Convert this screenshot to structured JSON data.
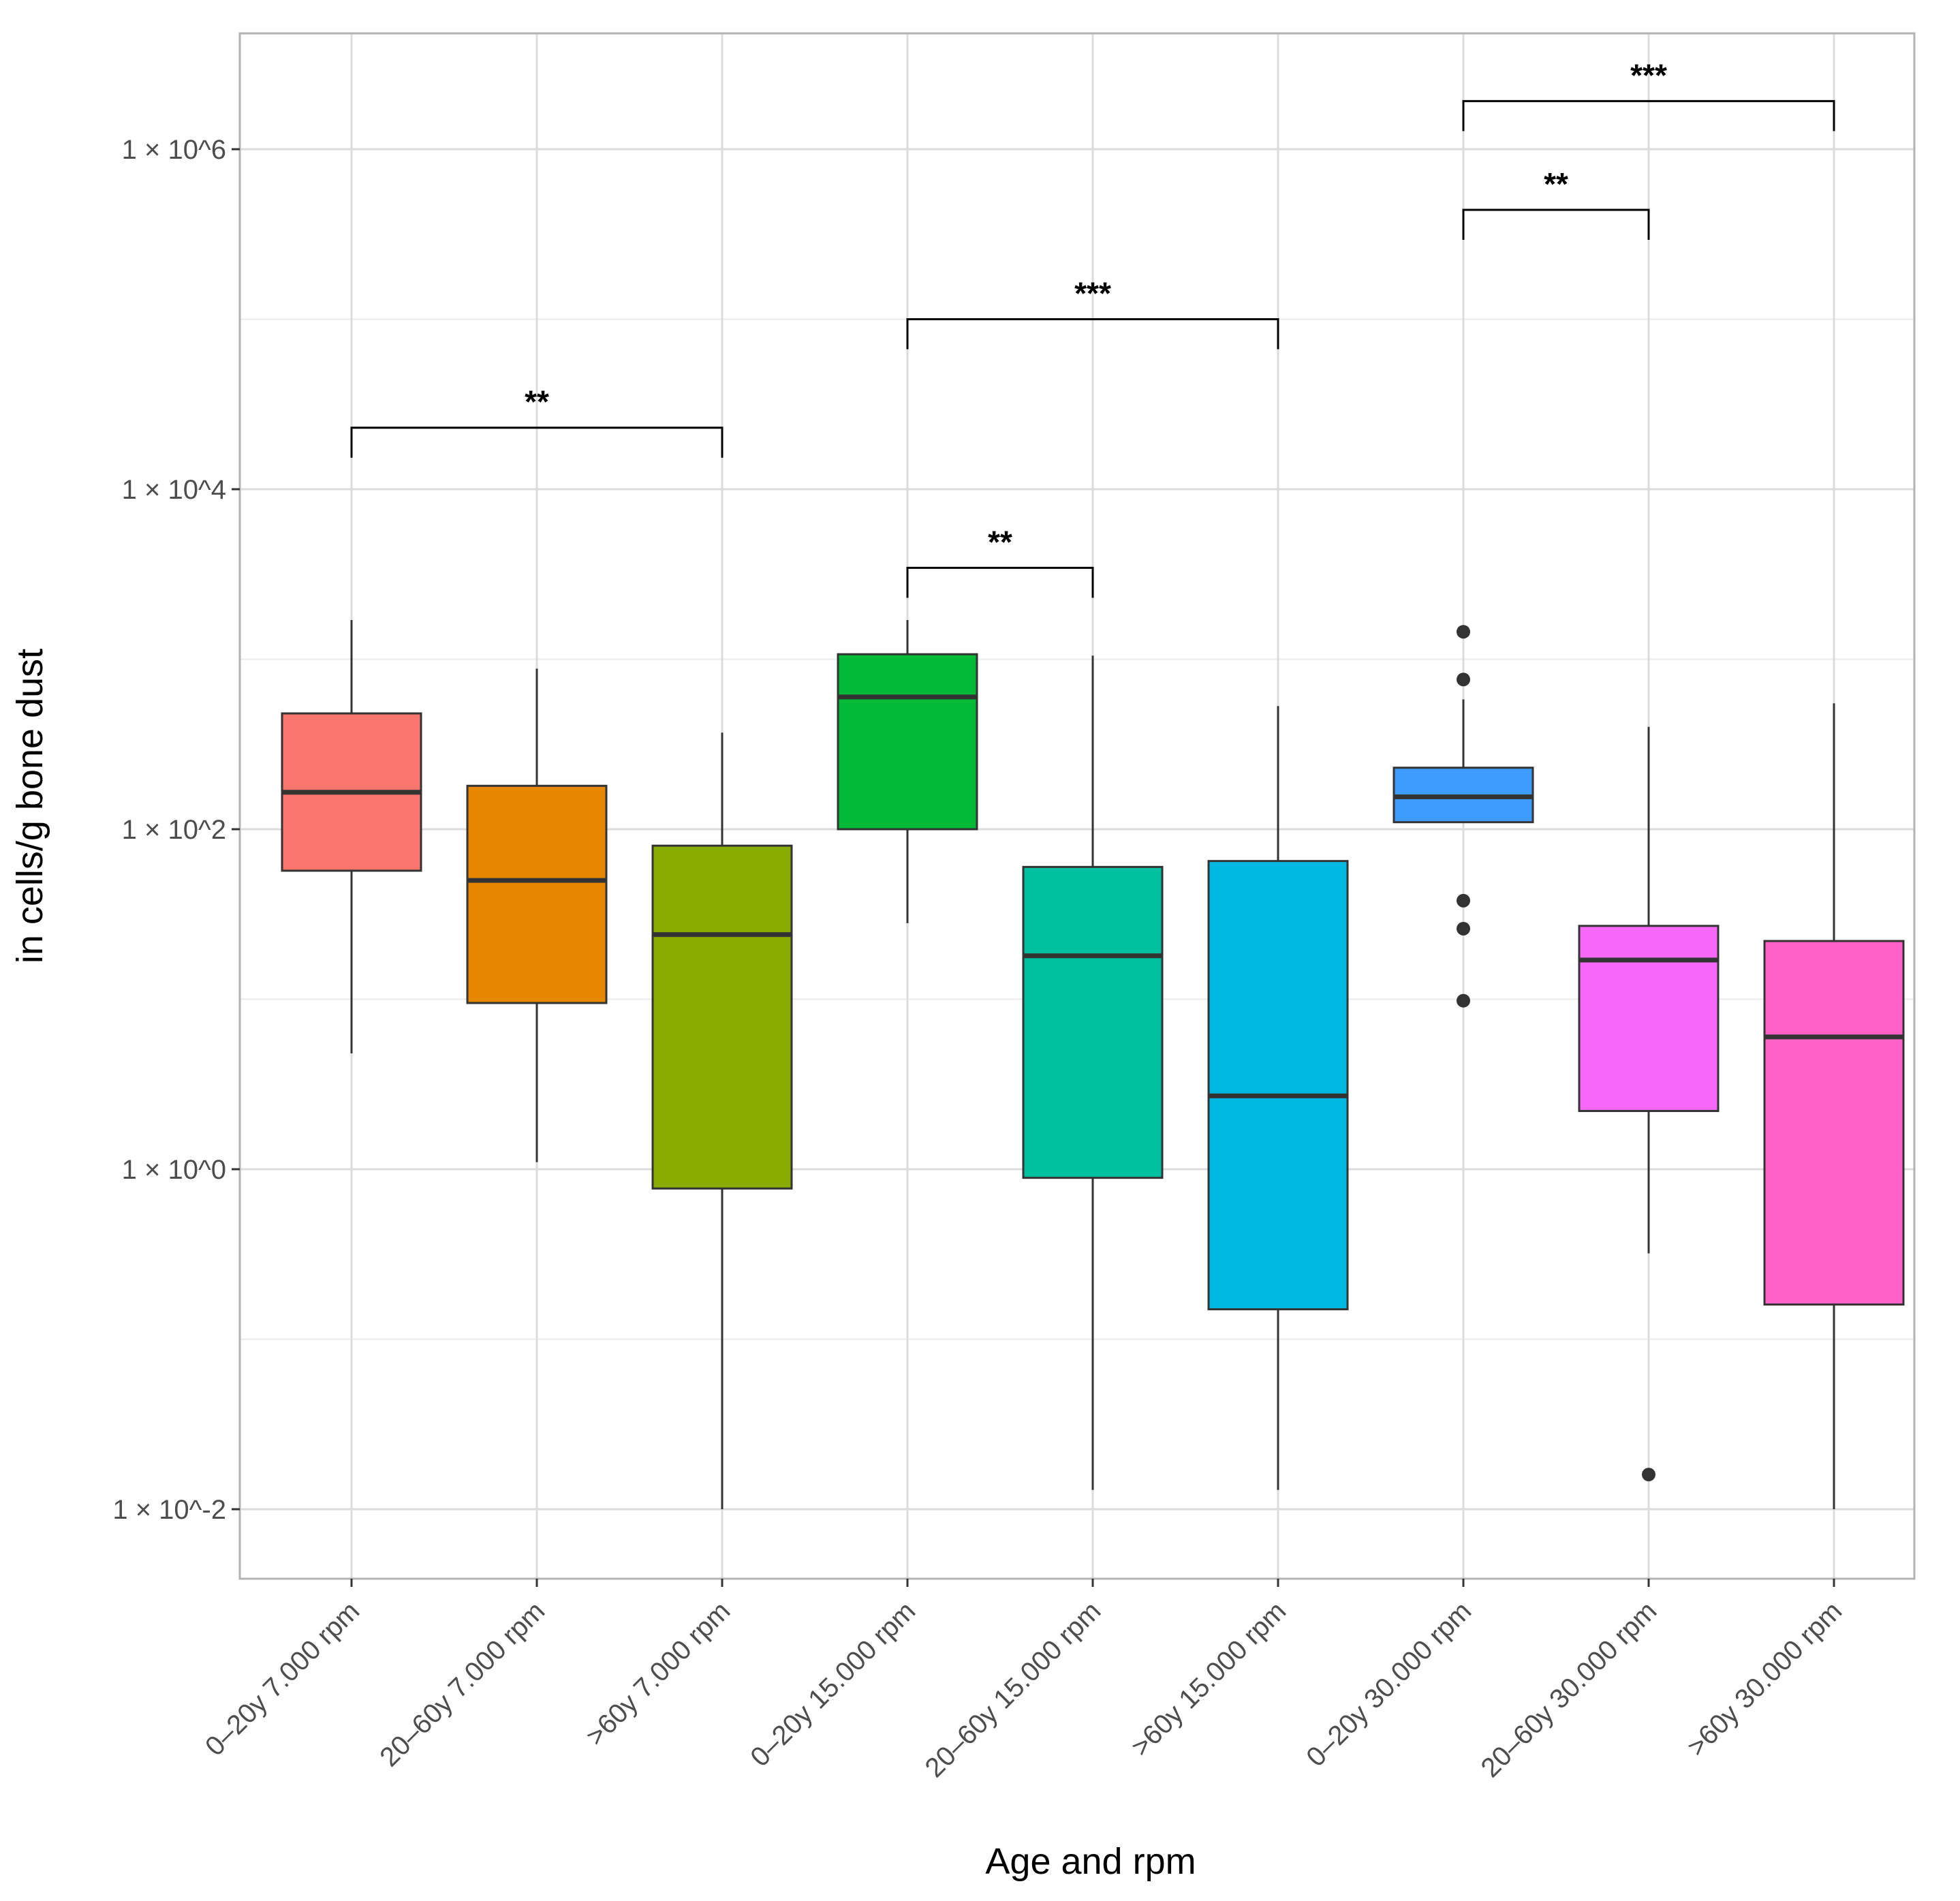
{
  "chart_data": {
    "type": "boxplot",
    "title": "",
    "xlabel": "Age and rpm",
    "ylabel": "in cells/g bone dust",
    "y_scale": "log10",
    "ylim": [
      0.0025,
      5000000
    ],
    "y_ticks": [
      {
        "value": 0.01,
        "label": "1 × 10^-2"
      },
      {
        "value": 1,
        "label": "1 × 10^0"
      },
      {
        "value": 100,
        "label": "1 × 10^2"
      },
      {
        "value": 10000,
        "label": "1 × 10^4"
      },
      {
        "value": 1000000,
        "label": "1 × 10^6"
      }
    ],
    "grid": true,
    "legend": "none",
    "categories": [
      "0–20y 7.000 rpm",
      "20–60y 7.000 rpm",
      ">60y 7.000 rpm",
      "0–20y 15.000 rpm",
      "20–60y 15.000 rpm",
      ">60y 15.000 rpm",
      "0–20y 30.000 rpm",
      "20–60y 30.000 rpm",
      ">60y 30.000 rpm"
    ],
    "boxes": [
      {
        "whisker_low": 4.8,
        "q1": 57,
        "median": 165,
        "q3": 480,
        "whisker_high": 1700,
        "outliers": [],
        "color": "#F8766D"
      },
      {
        "whisker_low": 1.1,
        "q1": 9.5,
        "median": 50,
        "q3": 180,
        "whisker_high": 880,
        "outliers": [],
        "color": "#E58700"
      },
      {
        "whisker_low": 0.01,
        "q1": 0.77,
        "median": 24,
        "q3": 80,
        "whisker_high": 370,
        "outliers": [],
        "color": "#89AC00"
      },
      {
        "whisker_low": 28,
        "q1": 100,
        "median": 600,
        "q3": 1070,
        "whisker_high": 1700,
        "outliers": [],
        "color": "#00BA38"
      },
      {
        "whisker_low": 0.013,
        "q1": 0.89,
        "median": 18,
        "q3": 60,
        "whisker_high": 1050,
        "outliers": [],
        "color": "#00C19F"
      },
      {
        "whisker_low": 0.013,
        "q1": 0.15,
        "median": 2.7,
        "q3": 65,
        "whisker_high": 530,
        "outliers": [],
        "color": "#00B9E3"
      },
      {
        "whisker_low": 110,
        "q1": 110,
        "median": 155,
        "q3": 230,
        "whisker_high": 580,
        "outliers": [
          1450,
          760,
          38,
          26,
          9.8
        ],
        "color": "#3C9CFF"
      },
      {
        "whisker_low": 0.32,
        "q1": 2.2,
        "median": 17,
        "q3": 27,
        "whisker_high": 400,
        "outliers": [
          0.016
        ],
        "color": "#F767F8"
      },
      {
        "whisker_low": 0.01,
        "q1": 0.16,
        "median": 6,
        "q3": 22,
        "whisker_high": 550,
        "outliers": [],
        "color": "#FF61C9"
      }
    ],
    "significance": [
      {
        "from": 0,
        "to": 2,
        "label": "**",
        "y": 23000
      },
      {
        "from": 3,
        "to": 4,
        "label": "**",
        "y": 3450
      },
      {
        "from": 3,
        "to": 5,
        "label": "***",
        "y": 100000
      },
      {
        "from": 6,
        "to": 7,
        "label": "**",
        "y": 440000
      },
      {
        "from": 6,
        "to": 8,
        "label": "***",
        "y": 1920000
      }
    ]
  }
}
